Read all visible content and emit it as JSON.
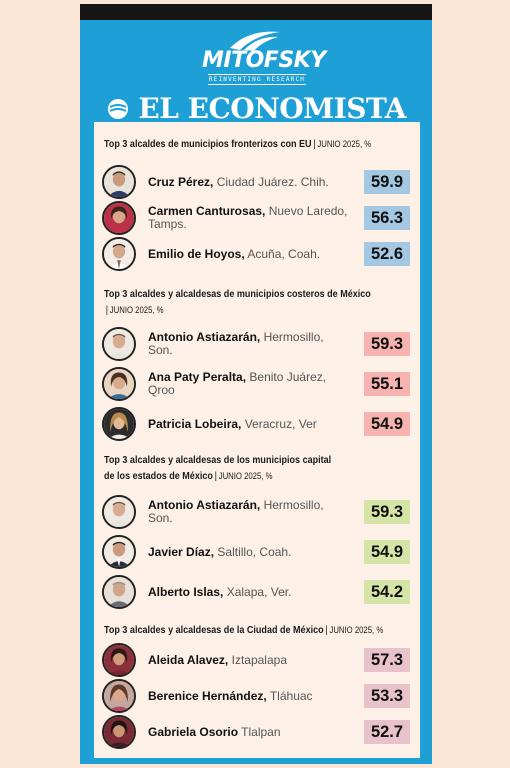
{
  "brand": {
    "mitofsky": "MITOFSKY",
    "mitofsky_tagline": "REINVENTING RESEARCH",
    "economista": "EL ECONOMISTA"
  },
  "colors": {
    "blue_frame": "#1e9fd6",
    "blue_value": "#a4c8e2",
    "pink_value": "#f6b3b0",
    "green_value": "#d5e5a8",
    "rose_value": "#e9c3cc"
  },
  "sections": [
    {
      "title": "Top 3 alcaldes de municipios fronterizos con EU",
      "meta": "JUNIO 2025, %",
      "items": [
        {
          "name": "Cruz Pérez,",
          "place": "Ciudad Juárez. Chih.",
          "value": "59.9"
        },
        {
          "name": "Carmen Canturosas,",
          "place": "Nuevo Laredo, Tamps.",
          "value": "56.3"
        },
        {
          "name": "Emilio de Hoyos,",
          "place": "Acuña, Coah.",
          "value": "52.6"
        }
      ]
    },
    {
      "title": "Top 3 alcaldes y alcaldesas de municipios costeros de México",
      "meta": "JUNIO 2025, %",
      "items": [
        {
          "name": "Antonio Astiazarán,",
          "place": "Hermosillo, Son.",
          "value": "59.3"
        },
        {
          "name": "Ana Paty Peralta,",
          "place": "Benito Juárez, Qroo",
          "value": "55.1"
        },
        {
          "name": "Patricia Lobeira,",
          "place": "Veracruz, Ver",
          "value": "54.9"
        }
      ]
    },
    {
      "title_line1": "Top 3 alcaldes y alcaldesas de los municipios capital",
      "title_line2": "de los estados de México",
      "meta": "JUNIO 2025, %",
      "items": [
        {
          "name": "Antonio Astiazarán,",
          "place": "Hermosillo, Son.",
          "value": "59.3"
        },
        {
          "name": "Javier Díaz,",
          "place": "Saltillo, Coah.",
          "value": "54.9"
        },
        {
          "name": "Alberto Islas,",
          "place": "Xalapa, Ver.",
          "value": "54.2"
        }
      ]
    },
    {
      "title": "Top 3 alcaldes y alcaldesas de la Ciudad de México",
      "meta": "JUNIO 2025, %",
      "items": [
        {
          "name": "Aleida Alavez,",
          "place": "Iztapalapa",
          "value": "57.3"
        },
        {
          "name": "Berenice Hernández,",
          "place": "Tláhuac",
          "value": "53.3"
        },
        {
          "name": "Gabriela Osorio",
          "place": "Tlalpan",
          "value": "52.7"
        }
      ]
    }
  ]
}
